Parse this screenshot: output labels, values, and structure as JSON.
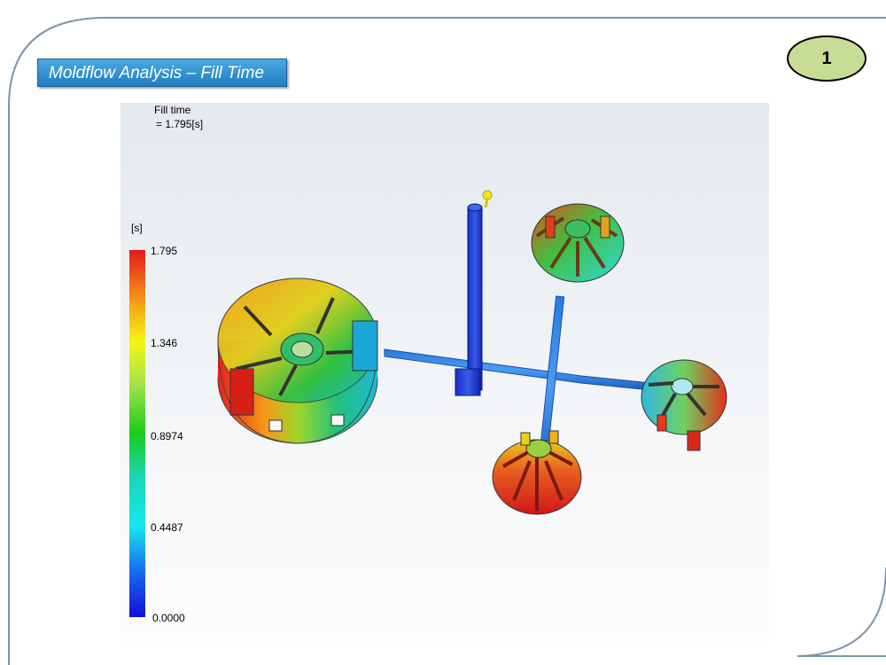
{
  "slide": {
    "title": "Moldflow Analysis – Fill Time",
    "page_number": "1"
  },
  "result": {
    "label": "Fill time",
    "value": "= 1.795[s]",
    "unit": "[s]",
    "scale_ticks": [
      "1.795",
      "1.346",
      "0.8974",
      "0.4487",
      "0.0000"
    ]
  },
  "colors": {
    "title_bg": "#2a8ed4",
    "badge_bg": "#c8dc96",
    "frame": "#7d93ab"
  }
}
